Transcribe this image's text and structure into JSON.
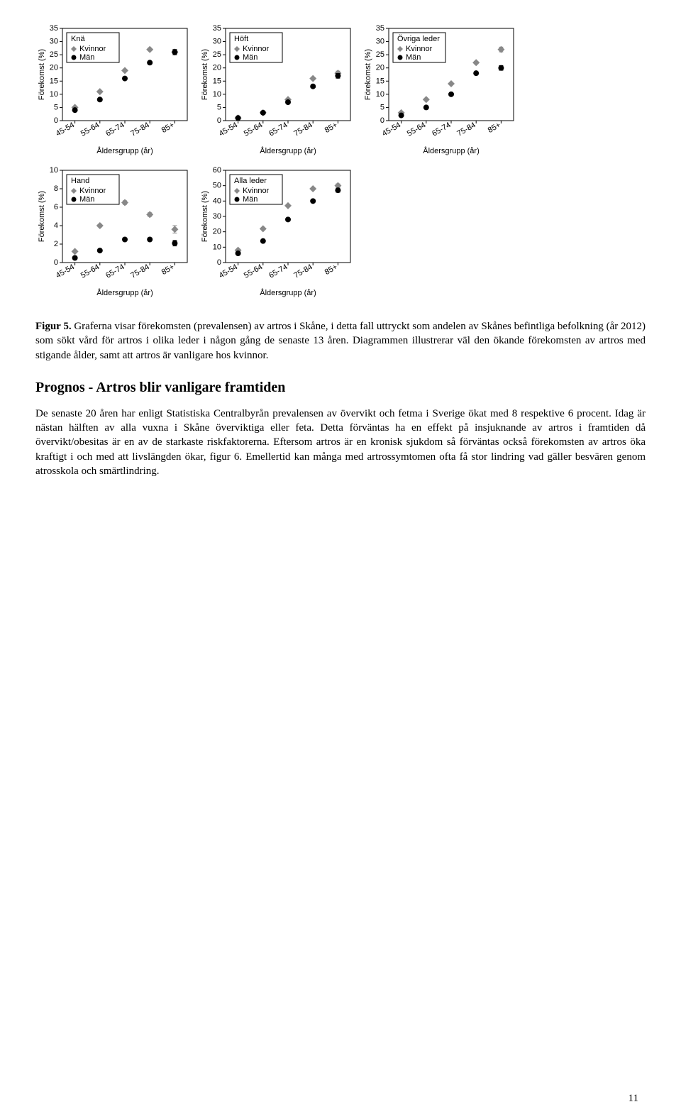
{
  "page_number": "11",
  "caption_label": "Figur 5.",
  "caption_rest": " Graferna visar förekomsten (prevalensen) av artros i Skåne, i detta fall uttryckt som andelen av Skånes befintliga befolkning (år 2012) som sökt vård för artros i olika leder i någon gång de senaste 13 åren. Diagrammen illustrerar väl den ökande förekomsten av artros med stigande ålder, samt att artros är vanligare hos kvinnor.",
  "section_title": "Prognos - Artros blir vanligare framtiden",
  "body_text": "De senaste 20 åren har enligt Statistiska Centralbyrån prevalensen av övervikt och fetma i Sverige ökat med 8 respektive 6 procent. Idag är nästan hälften av alla vuxna i Skåne överviktiga eller feta. Detta förväntas ha en effekt på insjuknande av artros i framtiden då övervikt/obesitas är en av de starkaste riskfaktorerna. Eftersom artros är en kronisk sjukdom så förväntas också förekomsten av artros öka kraftigt i och med att livslängden ökar, figur 6. Emellertid kan många med artrossymtomen ofta få stor lindring vad gäller besvären genom atrosskola och smärtlindring.",
  "shared": {
    "categories": [
      "45-54",
      "55-64",
      "65-74",
      "75-84",
      "85+"
    ],
    "ylabel": "Förekomst (%)",
    "xlabel": "Åldersgrupp (år)",
    "legend_labels": [
      "Kvinnor",
      "Män"
    ],
    "kvinnor_color": "#888888",
    "man_color": "#000000",
    "grid_color": "#ffffff",
    "axis_color": "#000000",
    "bg": "#ffffff",
    "tick_fontsize": 10,
    "label_fontsize": 11,
    "title_fontsize": 12,
    "marker_size": 5
  },
  "charts": [
    {
      "title": "Knä",
      "y_max": 35,
      "y_step": 5,
      "kvinnor": [
        5,
        11,
        19,
        27,
        26
      ],
      "man": [
        4,
        8,
        16,
        22,
        26
      ],
      "kvinnor_err": [
        0.2,
        0.3,
        0.4,
        0.5,
        0.9
      ],
      "man_err": [
        0.2,
        0.3,
        0.4,
        0.5,
        1.0
      ]
    },
    {
      "title": "Höft",
      "y_max": 35,
      "y_step": 5,
      "kvinnor": [
        1,
        3,
        8,
        16,
        18
      ],
      "man": [
        1,
        3,
        7,
        13,
        17
      ],
      "kvinnor_err": [
        0.2,
        0.2,
        0.3,
        0.4,
        0.8
      ],
      "man_err": [
        0.2,
        0.2,
        0.3,
        0.4,
        0.9
      ]
    },
    {
      "title": "Övriga leder",
      "y_max": 35,
      "y_step": 5,
      "kvinnor": [
        3,
        8,
        14,
        22,
        27
      ],
      "man": [
        2,
        5,
        10,
        18,
        20
      ],
      "kvinnor_err": [
        0.2,
        0.3,
        0.4,
        0.5,
        0.9
      ],
      "man_err": [
        0.2,
        0.3,
        0.4,
        0.5,
        0.9
      ]
    },
    {
      "title": "Hand",
      "y_max": 10,
      "y_step": 2,
      "kvinnor": [
        1.2,
        4.0,
        6.5,
        5.2,
        3.6
      ],
      "man": [
        0.5,
        1.3,
        2.5,
        2.5,
        2.1
      ],
      "kvinnor_err": [
        0.1,
        0.15,
        0.2,
        0.2,
        0.4
      ],
      "man_err": [
        0.1,
        0.1,
        0.15,
        0.15,
        0.3
      ]
    },
    {
      "title": "Alla leder",
      "y_max": 60,
      "y_step": 10,
      "kvinnor": [
        8,
        22,
        37,
        48,
        50
      ],
      "man": [
        6,
        14,
        28,
        40,
        47
      ],
      "kvinnor_err": [
        0.3,
        0.4,
        0.5,
        0.6,
        1.2
      ],
      "man_err": [
        0.3,
        0.4,
        0.5,
        0.6,
        1.3
      ]
    }
  ]
}
